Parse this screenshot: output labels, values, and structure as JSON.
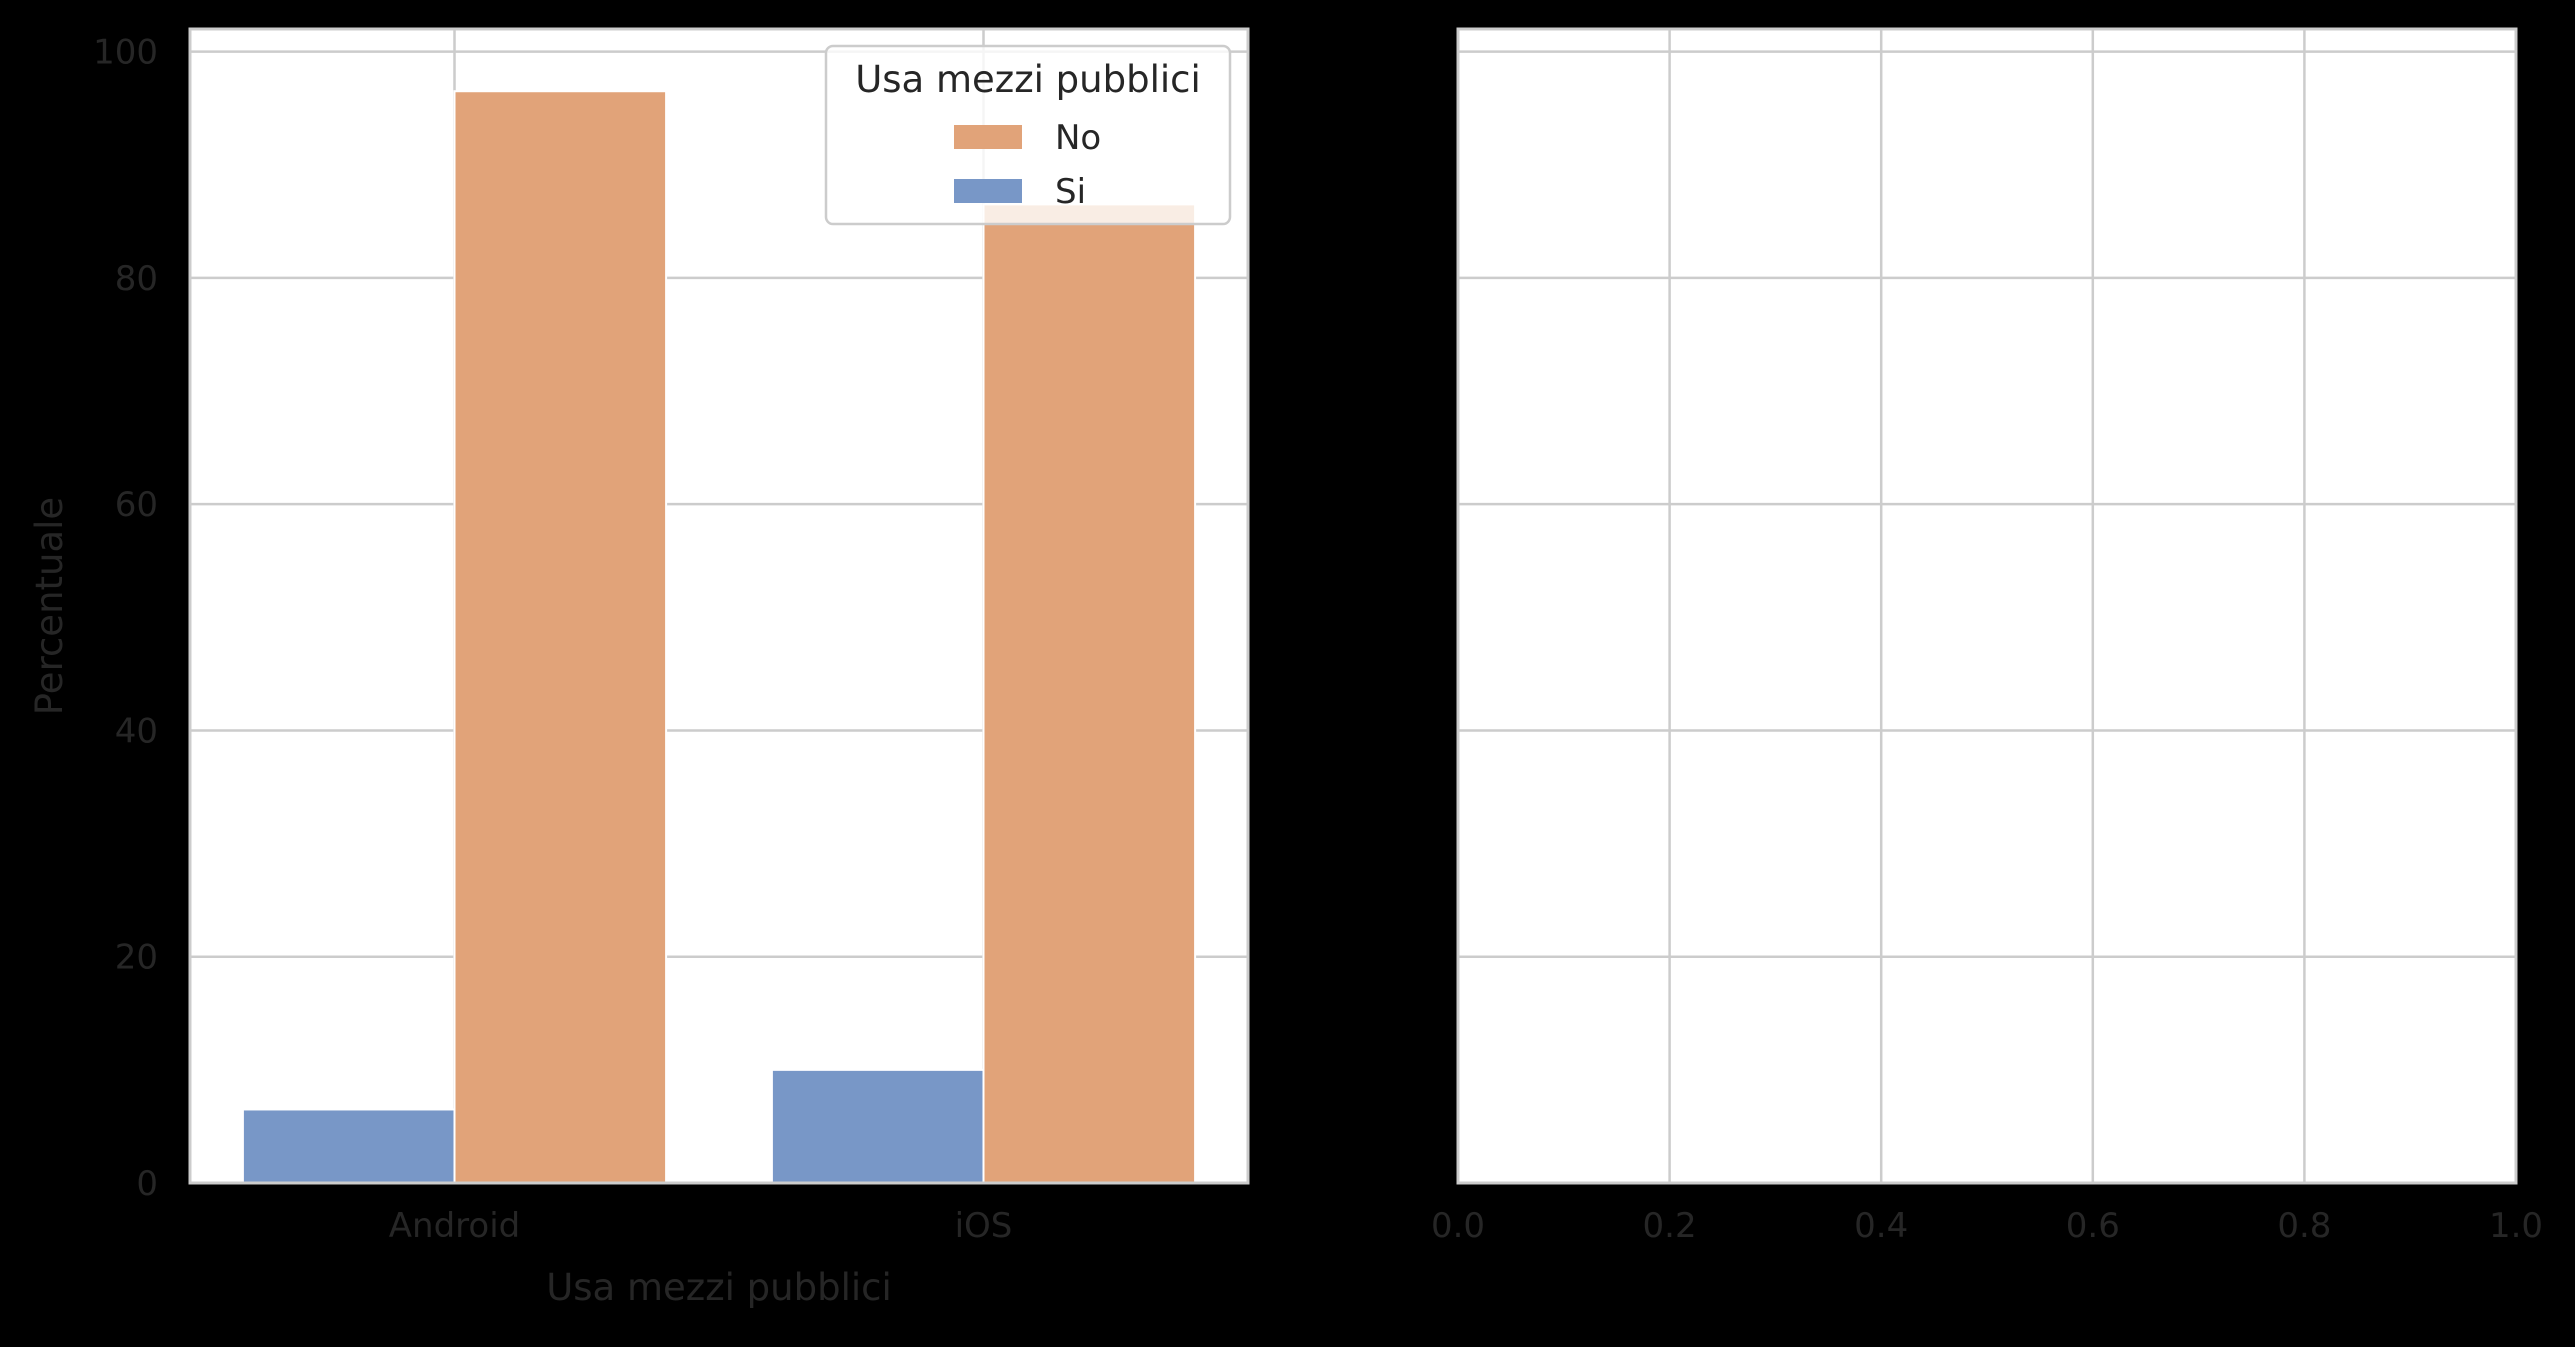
{
  "colors": {
    "figure_background": "#000000",
    "axes_background": "#ffffff",
    "grid": "#cccccc",
    "spine": "#cccccc",
    "tick_text": "#262626",
    "series_no": "#e1a379",
    "series_si": "#7897c7"
  },
  "chart_data": [
    {
      "type": "bar",
      "categories": [
        "Android",
        "iOS"
      ],
      "series": [
        {
          "name": "Si",
          "color_key": "series_si",
          "values": [
            6.5,
            10.0
          ]
        },
        {
          "name": "No",
          "color_key": "series_no",
          "values": [
            96.5,
            86.5
          ]
        }
      ],
      "title": "",
      "xlabel": "Usa mezzi pubblici",
      "ylabel": "Percentuale",
      "ylim": [
        0,
        102
      ],
      "yticks": [
        0,
        20,
        40,
        60,
        80,
        100
      ],
      "legend": {
        "title": "Usa mezzi pubblici",
        "placement": "upper-right",
        "entries": [
          "No",
          "Si"
        ]
      },
      "grid": true
    },
    {
      "type": "bar",
      "categories": [],
      "series": [],
      "title": "",
      "xlabel": "",
      "ylabel": "",
      "xlim": [
        0.0,
        1.0
      ],
      "xticks": [
        "0.0",
        "0.2",
        "0.4",
        "0.6",
        "0.8",
        "1.0"
      ],
      "grid": true,
      "empty": true
    }
  ]
}
